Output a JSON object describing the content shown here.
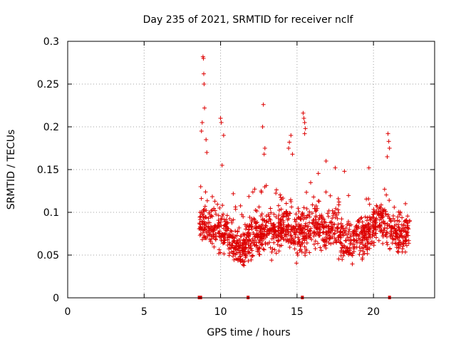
{
  "chart_data": {
    "type": "scatter",
    "title": "Day 235 of 2021, SRMTID for receiver nclf",
    "xlabel": "GPS time / hours",
    "ylabel": "SRMTID / TECUs",
    "xlim": [
      0,
      24
    ],
    "ylim": [
      0,
      0.3
    ],
    "xticks": [
      0,
      5,
      10,
      15,
      20
    ],
    "xtick_labels": [
      "0",
      "5",
      "10",
      "15",
      "20"
    ],
    "yticks": [
      0,
      0.05,
      0.1,
      0.15,
      0.2,
      0.25,
      0.3
    ],
    "ytick_labels": [
      "0",
      "0.05",
      "0.1",
      "0.15",
      "0.2",
      "0.25",
      "0.3"
    ],
    "grid": true,
    "color": "#dd0000",
    "marker": "+",
    "series": [
      {
        "name": "SRMTID",
        "envelope_center": [
          [
            8.6,
            0.09
          ],
          [
            9.0,
            0.085
          ],
          [
            9.5,
            0.08
          ],
          [
            10.0,
            0.078
          ],
          [
            10.5,
            0.075
          ],
          [
            11.0,
            0.06
          ],
          [
            11.5,
            0.058
          ],
          [
            12.0,
            0.07
          ],
          [
            12.5,
            0.072
          ],
          [
            13.0,
            0.08
          ],
          [
            13.5,
            0.075
          ],
          [
            14.0,
            0.085
          ],
          [
            14.5,
            0.08
          ],
          [
            15.0,
            0.07
          ],
          [
            15.5,
            0.08
          ],
          [
            16.0,
            0.085
          ],
          [
            16.5,
            0.08
          ],
          [
            17.0,
            0.075
          ],
          [
            17.5,
            0.08
          ],
          [
            18.0,
            0.07
          ],
          [
            18.5,
            0.065
          ],
          [
            19.0,
            0.075
          ],
          [
            19.5,
            0.07
          ],
          [
            20.0,
            0.085
          ],
          [
            20.5,
            0.09
          ],
          [
            21.0,
            0.08
          ],
          [
            21.5,
            0.075
          ],
          [
            22.0,
            0.07
          ],
          [
            22.4,
            0.08
          ]
        ],
        "spread": 0.035,
        "point_count": 1400,
        "spikes": [
          [
            8.85,
            0.282
          ],
          [
            8.88,
            0.28
          ],
          [
            8.9,
            0.262
          ],
          [
            8.92,
            0.25
          ],
          [
            8.95,
            0.222
          ],
          [
            8.8,
            0.205
          ],
          [
            8.75,
            0.195
          ],
          [
            9.05,
            0.185
          ],
          [
            9.1,
            0.17
          ],
          [
            10.0,
            0.21
          ],
          [
            10.05,
            0.205
          ],
          [
            10.2,
            0.19
          ],
          [
            10.1,
            0.155
          ],
          [
            12.8,
            0.226
          ],
          [
            12.75,
            0.2
          ],
          [
            12.9,
            0.175
          ],
          [
            12.85,
            0.168
          ],
          [
            14.6,
            0.19
          ],
          [
            14.5,
            0.182
          ],
          [
            14.45,
            0.175
          ],
          [
            14.7,
            0.168
          ],
          [
            15.4,
            0.216
          ],
          [
            15.45,
            0.21
          ],
          [
            15.5,
            0.205
          ],
          [
            15.55,
            0.198
          ],
          [
            15.5,
            0.192
          ],
          [
            20.95,
            0.192
          ],
          [
            21.0,
            0.183
          ],
          [
            21.05,
            0.175
          ],
          [
            20.9,
            0.165
          ],
          [
            16.9,
            0.16
          ],
          [
            17.5,
            0.152
          ],
          [
            18.1,
            0.148
          ],
          [
            19.7,
            0.152
          ]
        ]
      }
    ],
    "markers_on_axis": [
      8.65,
      11.8,
      15.35,
      21.05
    ]
  }
}
